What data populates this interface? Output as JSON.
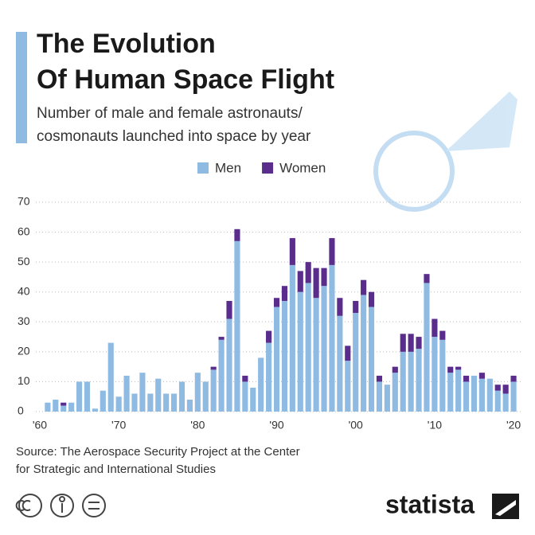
{
  "chart_data": {
    "type": "stacked-bar",
    "title": [
      "The Evolution",
      "Of Human Space Flight"
    ],
    "subtitle": [
      "Number of male and female astronauts/",
      "cosmonauts launched into space by year"
    ],
    "x": [
      1961,
      1962,
      1963,
      1964,
      1965,
      1966,
      1967,
      1968,
      1969,
      1970,
      1971,
      1972,
      1973,
      1974,
      1975,
      1976,
      1977,
      1978,
      1979,
      1980,
      1981,
      1982,
      1983,
      1984,
      1985,
      1986,
      1987,
      1988,
      1989,
      1990,
      1991,
      1992,
      1993,
      1994,
      1995,
      1996,
      1997,
      1998,
      1999,
      2000,
      2001,
      2002,
      2003,
      2004,
      2005,
      2006,
      2007,
      2008,
      2009,
      2010,
      2011,
      2012,
      2013,
      2014,
      2015,
      2016,
      2017,
      2018,
      2019,
      2020
    ],
    "series": [
      {
        "name": "Men",
        "color": "#8fbbe3",
        "values": [
          3,
          4,
          2,
          3,
          10,
          10,
          1,
          7,
          23,
          5,
          12,
          6,
          13,
          6,
          11,
          6,
          6,
          10,
          4,
          13,
          10,
          14,
          24,
          31,
          57,
          10,
          8,
          18,
          23,
          35,
          37,
          49,
          40,
          43,
          38,
          42,
          49,
          32,
          17,
          33,
          39,
          35,
          10,
          9,
          13,
          20,
          20,
          21,
          43,
          25,
          24,
          13,
          14,
          10,
          12,
          11,
          11,
          7,
          6,
          10
        ]
      },
      {
        "name": "Women",
        "color": "#5a2d8c",
        "values": [
          0,
          0,
          1,
          0,
          0,
          0,
          0,
          0,
          0,
          0,
          0,
          0,
          0,
          0,
          0,
          0,
          0,
          0,
          0,
          0,
          0,
          1,
          1,
          6,
          4,
          2,
          0,
          0,
          4,
          3,
          5,
          9,
          7,
          7,
          10,
          6,
          9,
          6,
          5,
          4,
          5,
          5,
          2,
          0,
          2,
          6,
          6,
          4,
          3,
          6,
          3,
          2,
          1,
          2,
          0,
          2,
          0,
          2,
          3,
          2
        ]
      }
    ],
    "xlim": [
      1959.5,
      2021
    ],
    "xticks": [
      {
        "value": 1960,
        "label": "'60"
      },
      {
        "value": 1970,
        "label": "'70"
      },
      {
        "value": 1980,
        "label": "'80"
      },
      {
        "value": 1990,
        "label": "'90"
      },
      {
        "value": 2000,
        "label": "'00"
      },
      {
        "value": 2010,
        "label": "'10"
      },
      {
        "value": 2020,
        "label": "'20"
      }
    ],
    "ylim": [
      0,
      70
    ],
    "yticks": [
      0,
      10,
      20,
      30,
      40,
      50,
      60,
      70
    ],
    "grid": true,
    "source": [
      "Source: The Aerospace Security Project at the Center",
      "for Strategic and International Studies"
    ],
    "logo": "statista"
  }
}
